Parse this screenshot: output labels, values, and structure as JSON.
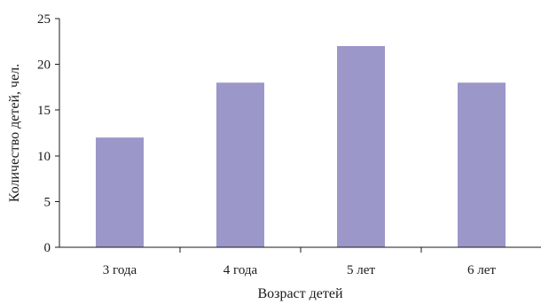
{
  "chart_data": {
    "type": "bar",
    "categories": [
      "3 года",
      "4 года",
      "5 лет",
      "6 лет"
    ],
    "values": [
      12,
      18,
      22,
      18
    ],
    "xlabel": "Возраст детей",
    "ylabel": "Количество детей, чел.",
    "ylim": [
      0,
      25
    ],
    "yticks": [
      0,
      5,
      10,
      15,
      20,
      25
    ],
    "grid": false,
    "bar_color": "#9b97c9"
  }
}
